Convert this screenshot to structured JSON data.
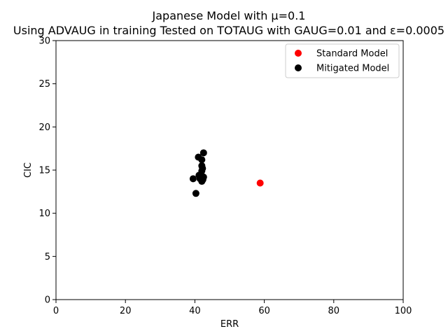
{
  "chart_data": {
    "type": "scatter",
    "title_line1": "Japanese Model with μ=0.1",
    "title_line2": "Using ADVAUG in training Tested on TOTAUG with GAUG=0.01 and ε=0.0005",
    "xlabel": "ERR",
    "ylabel": "CIC",
    "xlim": [
      0,
      100
    ],
    "ylim": [
      0,
      30
    ],
    "xticks": [
      0,
      20,
      40,
      60,
      80,
      100
    ],
    "yticks": [
      0,
      5,
      10,
      15,
      20,
      25,
      30
    ],
    "grid": false,
    "legend_position": "top-right",
    "series": [
      {
        "name": "Standard Model",
        "color": "#ff0000",
        "points": [
          {
            "x": 58.8,
            "y": 13.5
          }
        ]
      },
      {
        "name": "Mitigated Model",
        "color": "#000000",
        "points": [
          {
            "x": 42.5,
            "y": 17.0
          },
          {
            "x": 41.0,
            "y": 16.5
          },
          {
            "x": 42.0,
            "y": 16.2
          },
          {
            "x": 42.0,
            "y": 15.5
          },
          {
            "x": 42.2,
            "y": 15.2
          },
          {
            "x": 42.0,
            "y": 14.9
          },
          {
            "x": 41.2,
            "y": 14.4
          },
          {
            "x": 42.5,
            "y": 14.2
          },
          {
            "x": 39.5,
            "y": 14.0
          },
          {
            "x": 41.5,
            "y": 14.0
          },
          {
            "x": 42.3,
            "y": 13.9
          },
          {
            "x": 42.0,
            "y": 13.7
          },
          {
            "x": 40.3,
            "y": 12.3
          }
        ]
      }
    ]
  }
}
